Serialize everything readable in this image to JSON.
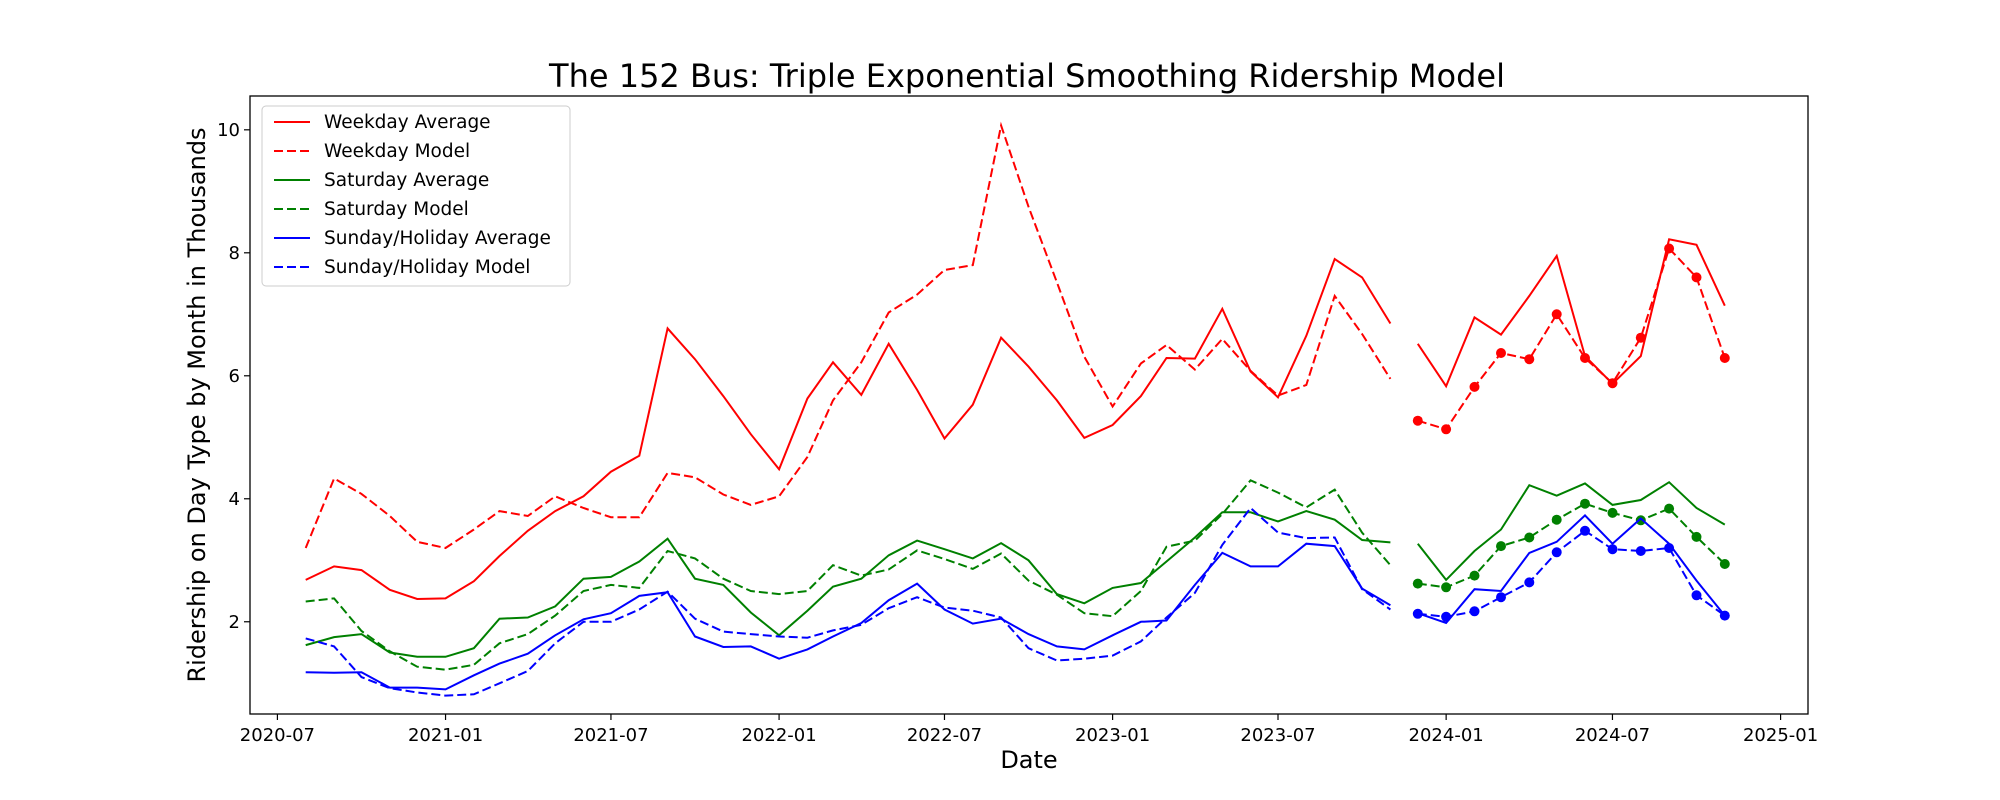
{
  "chart_data": {
    "type": "line",
    "title": "The 152 Bus: Triple Exponential Smoothing Ridership Model",
    "xlabel": "Date",
    "ylabel": "Ridership on Day Type by Month in Thousands",
    "xlim": [
      "2020-06-01",
      "2025-01-31"
    ],
    "ylim": [
      0.5,
      10.55
    ],
    "xticks": [
      "2020-07",
      "2021-01",
      "2021-07",
      "2022-01",
      "2022-07",
      "2023-01",
      "2023-07",
      "2024-01",
      "2024-07",
      "2025-01"
    ],
    "yticks": [
      2,
      4,
      6,
      8,
      10
    ],
    "grid": false,
    "legend_position": "upper-left",
    "fitted_months": [
      "2020-08",
      "2020-09",
      "2020-10",
      "2020-11",
      "2020-12",
      "2021-01",
      "2021-02",
      "2021-03",
      "2021-04",
      "2021-05",
      "2021-06",
      "2021-07",
      "2021-08",
      "2021-09",
      "2021-10",
      "2021-11",
      "2021-12",
      "2022-01",
      "2022-02",
      "2022-03",
      "2022-04",
      "2022-05",
      "2022-06",
      "2022-07",
      "2022-08",
      "2022-09",
      "2022-10",
      "2022-11",
      "2022-12",
      "2023-01",
      "2023-02",
      "2023-03",
      "2023-04",
      "2023-05",
      "2023-06",
      "2023-07",
      "2023-08",
      "2023-09",
      "2023-10",
      "2023-11"
    ],
    "forecast_months": [
      "2023-12",
      "2024-01",
      "2024-02",
      "2024-03",
      "2024-04",
      "2024-05",
      "2024-06",
      "2024-07",
      "2024-08",
      "2024-09",
      "2024-10",
      "2024-11"
    ],
    "series": [
      {
        "name": "Weekday Average",
        "color": "#ff0000",
        "style": "solid",
        "fitted": [
          2.68,
          2.9,
          2.84,
          2.52,
          2.37,
          2.38,
          2.66,
          3.07,
          3.48,
          3.8,
          4.04,
          4.44,
          4.7,
          6.77,
          6.27,
          5.67,
          5.05,
          4.48,
          5.63,
          6.22,
          5.69,
          6.52,
          5.77,
          4.98,
          5.53,
          6.62,
          6.15,
          5.6,
          4.99,
          5.2,
          5.67,
          6.29,
          6.28,
          7.09,
          6.07,
          5.65,
          6.65,
          7.9,
          7.6,
          6.85
        ],
        "forecast": [
          6.52,
          5.83,
          6.95,
          6.67,
          7.3,
          7.95,
          6.32,
          5.87,
          6.32,
          8.22,
          8.13,
          7.14
        ]
      },
      {
        "name": "Weekday Model",
        "color": "#ff0000",
        "style": "dashed",
        "fitted": [
          3.2,
          4.33,
          4.08,
          3.72,
          3.3,
          3.2,
          3.5,
          3.8,
          3.72,
          4.04,
          3.85,
          3.7,
          3.7,
          4.42,
          4.35,
          4.07,
          3.9,
          4.04,
          4.68,
          5.6,
          6.22,
          7.03,
          7.32,
          7.72,
          7.8,
          10.07,
          8.75,
          7.52,
          6.31,
          5.5,
          6.2,
          6.5,
          6.1,
          6.6,
          6.08,
          5.68,
          5.85,
          7.3,
          6.68,
          5.95
        ],
        "forecast": [
          5.27,
          5.13,
          5.82,
          6.37,
          6.27,
          7.0,
          6.29,
          5.88,
          6.62,
          8.07,
          7.6,
          6.29
        ]
      },
      {
        "name": "Saturday Average",
        "color": "#008000",
        "style": "solid",
        "fitted": [
          1.62,
          1.75,
          1.8,
          1.5,
          1.43,
          1.43,
          1.57,
          2.05,
          2.07,
          2.25,
          2.7,
          2.73,
          2.98,
          3.35,
          2.7,
          2.6,
          2.15,
          1.78,
          2.18,
          2.57,
          2.7,
          3.08,
          3.32,
          3.18,
          3.03,
          3.28,
          3.0,
          2.45,
          2.3,
          2.55,
          2.63,
          2.98,
          3.37,
          3.78,
          3.78,
          3.63,
          3.8,
          3.66,
          3.33,
          3.29
        ],
        "forecast": [
          3.27,
          2.68,
          3.15,
          3.5,
          4.22,
          4.05,
          4.25,
          3.9,
          3.98,
          4.27,
          3.85,
          3.58
        ]
      },
      {
        "name": "Saturday Model",
        "color": "#008000",
        "style": "dashed",
        "fitted": [
          2.33,
          2.38,
          1.85,
          1.52,
          1.27,
          1.22,
          1.3,
          1.65,
          1.8,
          2.1,
          2.5,
          2.6,
          2.55,
          3.15,
          3.03,
          2.7,
          2.5,
          2.45,
          2.5,
          2.92,
          2.75,
          2.85,
          3.16,
          3.02,
          2.86,
          3.11,
          2.67,
          2.44,
          2.14,
          2.09,
          2.5,
          3.22,
          3.32,
          3.75,
          4.3,
          4.1,
          3.86,
          4.15,
          3.45,
          2.92
        ],
        "forecast": [
          2.62,
          2.56,
          2.75,
          3.23,
          3.37,
          3.66,
          3.92,
          3.77,
          3.65,
          3.84,
          3.38,
          2.94
        ]
      },
      {
        "name": "Sunday/Holiday Average",
        "color": "#0000ff",
        "style": "solid",
        "fitted": [
          1.18,
          1.17,
          1.18,
          0.93,
          0.93,
          0.9,
          1.13,
          1.32,
          1.48,
          1.78,
          2.04,
          2.14,
          2.42,
          2.48,
          1.76,
          1.59,
          1.6,
          1.4,
          1.55,
          1.76,
          1.98,
          2.35,
          2.62,
          2.2,
          1.97,
          2.05,
          1.8,
          1.6,
          1.55,
          1.78,
          2.0,
          2.02,
          2.6,
          3.12,
          2.9,
          2.9,
          3.27,
          3.23,
          2.54,
          2.27
        ],
        "forecast": [
          2.14,
          1.98,
          2.53,
          2.5,
          3.12,
          3.3,
          3.73,
          3.27,
          3.68,
          3.27,
          2.67,
          2.1
        ]
      },
      {
        "name": "Sunday/Holiday Model",
        "color": "#0000ff",
        "style": "dashed",
        "fitted": [
          1.73,
          1.6,
          1.1,
          0.92,
          0.85,
          0.8,
          0.82,
          1.0,
          1.2,
          1.65,
          2.0,
          2.0,
          2.2,
          2.49,
          2.05,
          1.84,
          1.8,
          1.76,
          1.74,
          1.86,
          1.95,
          2.22,
          2.4,
          2.23,
          2.18,
          2.07,
          1.57,
          1.37,
          1.4,
          1.45,
          1.68,
          2.07,
          2.47,
          3.25,
          3.85,
          3.45,
          3.36,
          3.37,
          2.53,
          2.2
        ],
        "forecast": [
          2.13,
          2.08,
          2.17,
          2.4,
          2.64,
          3.13,
          3.48,
          3.18,
          3.15,
          3.2,
          2.43,
          2.1
        ]
      }
    ]
  }
}
